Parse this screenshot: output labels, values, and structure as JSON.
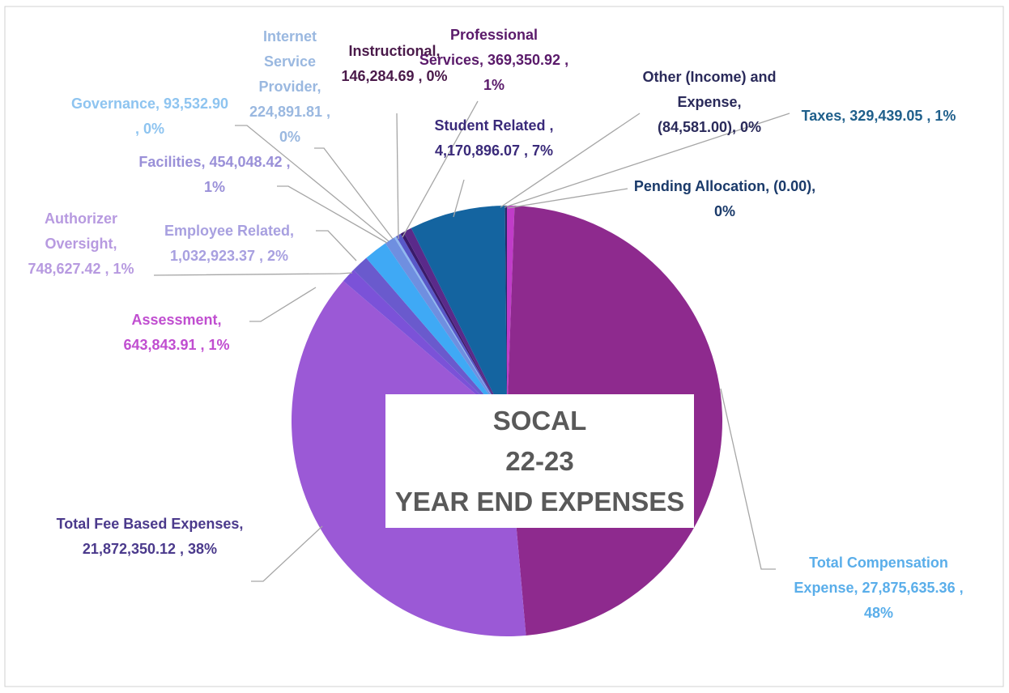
{
  "chart_data": {
    "type": "pie",
    "title": [
      "SOCAL",
      "22-23",
      "YEAR END EXPENSES"
    ],
    "values": [
      329439.05,
      27875635.36,
      21872350.12,
      643843.91,
      748627.42,
      1032923.37,
      454048.42,
      93532.9,
      224891.81,
      146284.69,
      369350.92,
      4170896.07,
      -84581.0,
      0
    ],
    "value_labels": [
      "Taxes, 329,439.05 , 1%",
      "Total Compensation Expense, 27,875,635.36 , 48%",
      "Total Fee Based Expenses, 21,872,350.12 , 38%",
      "Assessment, 643,843.91 , 1%",
      "Authorizer Oversight, 748,627.42 , 1%",
      "Employee Related, 1,032,923.37 , 2%",
      "Facilities, 454,048.42 , 1%",
      "Governance, 93,532.90 , 0%",
      "Internet Service Provider, 224,891.81 , 0%",
      "Instructional, 146,284.69 , 0%",
      "Professional Services, 369,350.92 , 1%",
      "Student Related , 4,170,896.07 , 7%",
      "Other (Income) and Expense, (84,581.00), 0%",
      "Pending Allocation, (0.00), 0%"
    ],
    "colors": [
      "#c03cc8",
      "#8e2a8e",
      "#9b59d6",
      "#7b52d8",
      "#6a5acd",
      "#3fa9f5",
      "#6f8fe0",
      "#8fb8f0",
      "#5858c8",
      "#3a1a6a",
      "#5a2a8a",
      "#1464a0",
      "#2a2a6a",
      "#1a3a6a"
    ],
    "label_colors": [
      "#1f5f8b",
      "#5aaeea",
      "#4b3a8c",
      "#c04ed0",
      "#b79ae0",
      "#a8a0e0",
      "#9a90d8",
      "#8ec4f0",
      "#9ab8e0",
      "#4a1a4a",
      "#5a1a6a",
      "#3a2a7a",
      "#2a2a5a",
      "#1a3a6a"
    ]
  }
}
